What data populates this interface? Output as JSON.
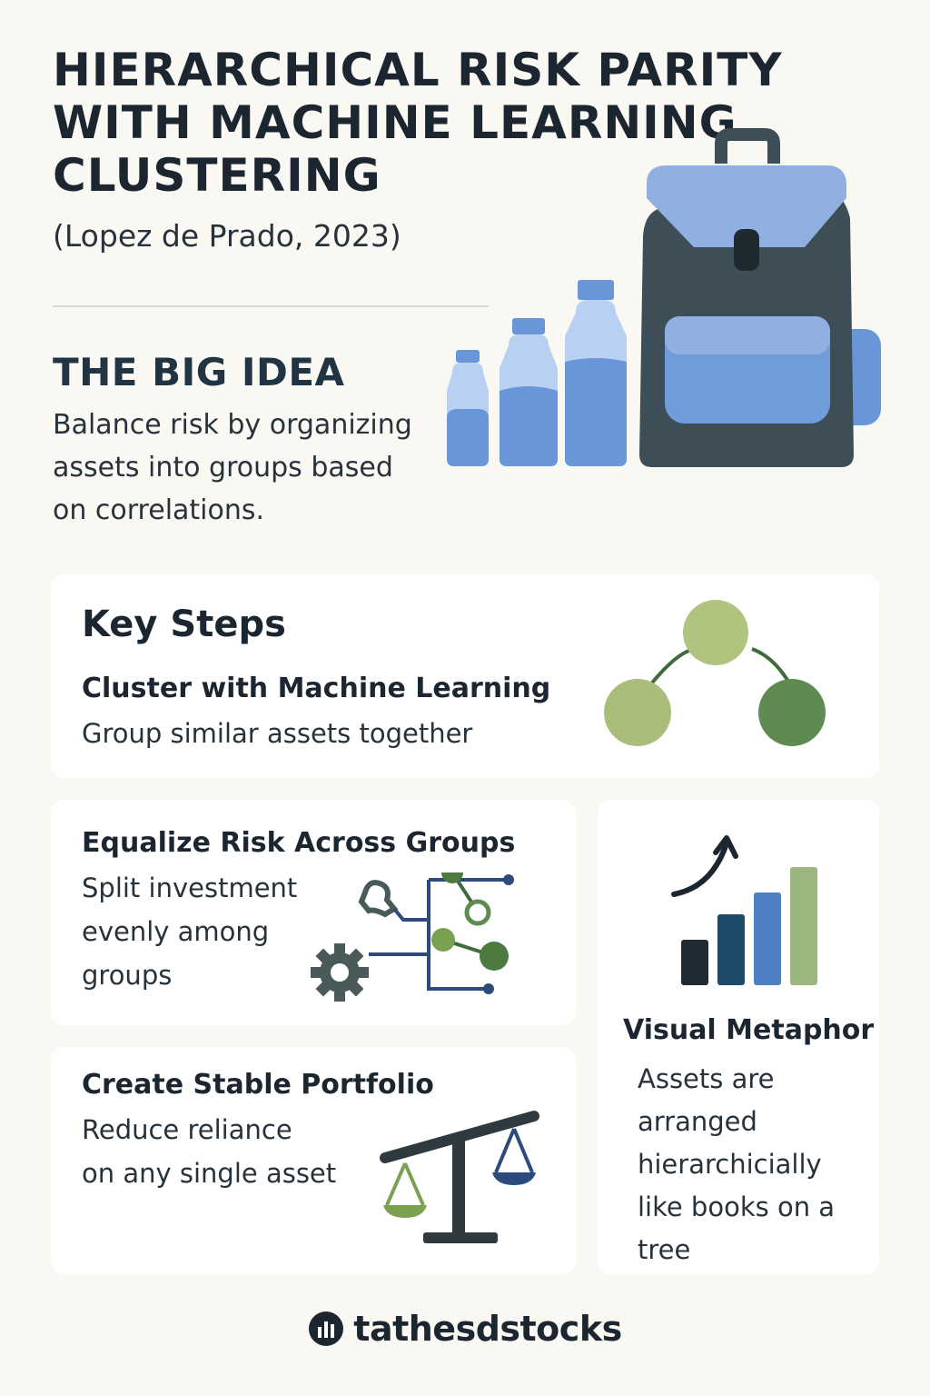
{
  "header": {
    "title_lines": [
      "HIERARCHICAL RISK PARITY",
      "WITH MACHINE LEARNING",
      "CLUSTERING"
    ],
    "subtitle": "(Lopez de Prado, 2023)"
  },
  "big_idea": {
    "heading": "THE BIG IDEA",
    "lines": [
      "Balance risk by organizing",
      "assets into groups based",
      "on correlations."
    ]
  },
  "key_steps": {
    "heading": "Key Steps",
    "step1": {
      "title": "Cluster with Machine Learning",
      "text": "Group similar assets together"
    },
    "step2": {
      "title": "Equalize Risk Across Groups",
      "lines": [
        "Split investment",
        "evenly among",
        "groups"
      ]
    },
    "step3": {
      "title": "Create Stable Portfolio",
      "lines": [
        "Reduce reliance",
        "on any single asset"
      ]
    }
  },
  "metaphor": {
    "heading": "Visual Metaphor",
    "lines": [
      "Assets are",
      "arranged",
      "hierarchicially",
      "like books on a",
      "tree"
    ]
  },
  "brand": {
    "name": "tathesdstocks"
  },
  "icons": {
    "backpack": "backpack-icon",
    "bottles": "water-bottle-icon",
    "cluster": "cluster-tree-icon",
    "network": "network-icon",
    "gear": "gear-icon",
    "scale": "balance-scale-icon",
    "bars": "bar-chart-icon",
    "arrow": "up-arrow-icon",
    "logo": "brand-logo-icon"
  },
  "colors": {
    "background": "#faf8f3",
    "navy": "#1c2630",
    "blue_light": "#8fb0e0",
    "blue_mid": "#6996d8",
    "slate": "#3d4e56",
    "green_light": "#b1c47f",
    "green_dark": "#5f8a52"
  }
}
